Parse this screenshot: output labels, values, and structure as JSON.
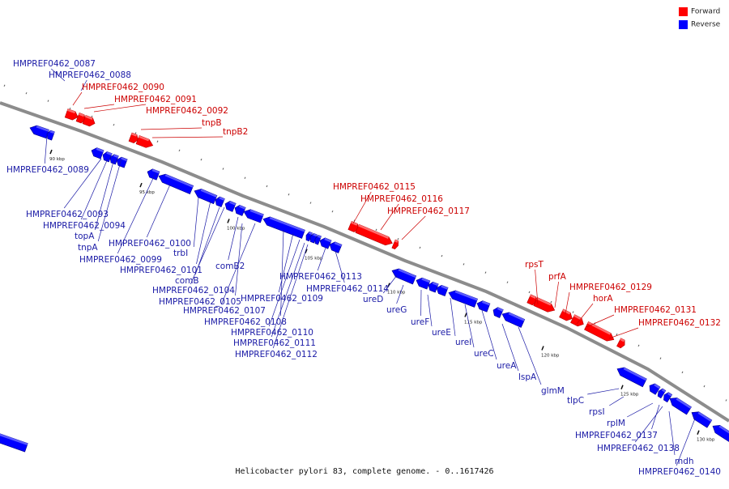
{
  "legend": {
    "forward": "Forward",
    "reverse": "Reverse"
  },
  "colors": {
    "forward": "#ff0000",
    "reverse": "#0000ff",
    "forward_label": "#cc0000",
    "reverse_label": "#1a1aa6",
    "backbone": "#8c8c8c"
  },
  "caption": "Helicobacter pylori 83, complete genome. - 0..1617426",
  "ticks": [
    "90 kbp",
    "95 kbp",
    "100 kbp",
    "105 kbp",
    "110 kbp",
    "115 kbp",
    "120 kbp",
    "125 kbp",
    "130 kbp"
  ],
  "genes": [
    {
      "name": "HMPREF0462_0087",
      "strand": "reverse"
    },
    {
      "name": "HMPREF0462_0088",
      "strand": "reverse"
    },
    {
      "name": "HMPREF0462_0090",
      "strand": "forward"
    },
    {
      "name": "HMPREF0462_0091",
      "strand": "forward"
    },
    {
      "name": "HMPREF0462_0092",
      "strand": "forward"
    },
    {
      "name": "tnpB",
      "strand": "forward"
    },
    {
      "name": "tnpB2",
      "strand": "forward"
    },
    {
      "name": "HMPREF0462_0089",
      "strand": "reverse"
    },
    {
      "name": "HMPREF0462_0093",
      "strand": "reverse"
    },
    {
      "name": "HMPREF0462_0094",
      "strand": "reverse"
    },
    {
      "name": "topA",
      "strand": "reverse"
    },
    {
      "name": "tnpA",
      "strand": "reverse"
    },
    {
      "name": "HMPREF0462_0099",
      "strand": "reverse"
    },
    {
      "name": "HMPREF0462_0100",
      "strand": "reverse"
    },
    {
      "name": "trbI",
      "strand": "reverse"
    },
    {
      "name": "HMPREF0462_0101",
      "strand": "reverse"
    },
    {
      "name": "comB",
      "strand": "reverse"
    },
    {
      "name": "comB2",
      "strand": "reverse"
    },
    {
      "name": "HMPREF0462_0104",
      "strand": "reverse"
    },
    {
      "name": "HMPREF0462_0105",
      "strand": "reverse"
    },
    {
      "name": "HMPREF0462_0107",
      "strand": "reverse"
    },
    {
      "name": "HMPREF0462_0108",
      "strand": "reverse"
    },
    {
      "name": "HMPREF0462_0109",
      "strand": "reverse"
    },
    {
      "name": "HMPREF0462_0110",
      "strand": "reverse"
    },
    {
      "name": "HMPREF0462_0111",
      "strand": "reverse"
    },
    {
      "name": "HMPREF0462_0112",
      "strand": "reverse"
    },
    {
      "name": "HMPREF0462_0113",
      "strand": "reverse"
    },
    {
      "name": "HMPREF0462_0114",
      "strand": "reverse"
    },
    {
      "name": "HMPREF0462_0115",
      "strand": "forward"
    },
    {
      "name": "HMPREF0462_0116",
      "strand": "forward"
    },
    {
      "name": "HMPREF0462_0117",
      "strand": "forward"
    },
    {
      "name": "ureD",
      "strand": "reverse"
    },
    {
      "name": "ureG",
      "strand": "reverse"
    },
    {
      "name": "ureF",
      "strand": "reverse"
    },
    {
      "name": "ureE",
      "strand": "reverse"
    },
    {
      "name": "ureI",
      "strand": "reverse"
    },
    {
      "name": "ureC",
      "strand": "reverse"
    },
    {
      "name": "ureA",
      "strand": "reverse"
    },
    {
      "name": "lspA",
      "strand": "reverse"
    },
    {
      "name": "glmM",
      "strand": "reverse"
    },
    {
      "name": "rpsT",
      "strand": "forward"
    },
    {
      "name": "prfA",
      "strand": "forward"
    },
    {
      "name": "HMPREF0462_0129",
      "strand": "forward"
    },
    {
      "name": "horA",
      "strand": "forward"
    },
    {
      "name": "HMPREF0462_0131",
      "strand": "forward"
    },
    {
      "name": "HMPREF0462_0132",
      "strand": "forward"
    },
    {
      "name": "tlpC",
      "strand": "reverse"
    },
    {
      "name": "rpsI",
      "strand": "reverse"
    },
    {
      "name": "rplM",
      "strand": "reverse"
    },
    {
      "name": "HMPREF0462_0137",
      "strand": "reverse"
    },
    {
      "name": "HMPREF0462_0138",
      "strand": "reverse"
    },
    {
      "name": "mdh",
      "strand": "reverse"
    },
    {
      "name": "HMPREF0462_0140",
      "strand": "reverse"
    }
  ]
}
